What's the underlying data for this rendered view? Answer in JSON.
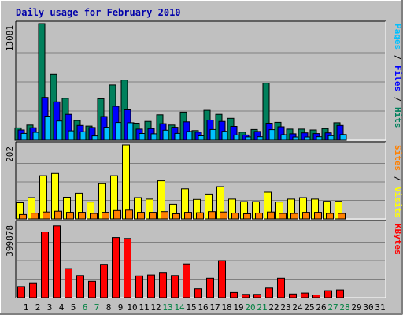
{
  "title": "Daily usage for February 2010",
  "colors": {
    "background": "#c0c0c0",
    "plot_background": "#c0c0c0",
    "title": "#0000aa",
    "hits": "#00805c",
    "files": "#0000ff",
    "pages": "#00c0ff",
    "visits": "#ffff00",
    "sites": "#ff8000",
    "kbytes": "#ff0000",
    "day_label_weekday": "#000000",
    "day_label_weekend": "#008040"
  },
  "chart_data": [
    {
      "type": "bar",
      "name": "hits-files-pages",
      "max_label": "13081",
      "ylim": [
        0,
        13081
      ],
      "right_legend": [
        "Pages",
        "Files",
        "Hits"
      ],
      "categories": [
        "1",
        "2",
        "3",
        "4",
        "5",
        "6",
        "7",
        "8",
        "9",
        "10",
        "11",
        "12",
        "13",
        "14",
        "15",
        "16",
        "17",
        "18",
        "19",
        "20",
        "21",
        "22",
        "23",
        "24",
        "25",
        "26",
        "27",
        "28",
        "29",
        "30",
        "31"
      ],
      "series": [
        {
          "name": "Hits",
          "values": [
            1380,
            1700,
            13081,
            7400,
            4700,
            2200,
            1580,
            4650,
            6200,
            6750,
            1900,
            2100,
            2850,
            1700,
            3150,
            1080,
            3350,
            2900,
            2450,
            900,
            1200,
            6400,
            2000,
            1250,
            1250,
            1150,
            1300,
            1950,
            0,
            0,
            0
          ]
        },
        {
          "name": "Files",
          "values": [
            1150,
            1400,
            4800,
            4300,
            2900,
            1650,
            1420,
            2650,
            3800,
            3400,
            1250,
            1300,
            1850,
            1450,
            2050,
            900,
            2250,
            2100,
            1550,
            580,
            980,
            1900,
            1500,
            720,
            820,
            740,
            820,
            1650,
            0,
            0,
            0
          ]
        },
        {
          "name": "Pages",
          "values": [
            760,
            880,
            2700,
            2150,
            1050,
            950,
            480,
            1450,
            1980,
            1950,
            750,
            720,
            1120,
            760,
            980,
            490,
            1200,
            1000,
            580,
            360,
            380,
            1180,
            620,
            350,
            350,
            380,
            500,
            640,
            0,
            0,
            0
          ]
        }
      ]
    },
    {
      "type": "bar",
      "name": "visits-sites",
      "max_label": "202",
      "ylim": [
        0,
        202
      ],
      "right_legend": [
        "Sites",
        "Visits"
      ],
      "categories": [
        "1",
        "2",
        "3",
        "4",
        "5",
        "6",
        "7",
        "8",
        "9",
        "10",
        "11",
        "12",
        "13",
        "14",
        "15",
        "16",
        "17",
        "18",
        "19",
        "20",
        "21",
        "22",
        "23",
        "24",
        "25",
        "26",
        "27",
        "28",
        "29",
        "30",
        "31"
      ],
      "series": [
        {
          "name": "Visits",
          "values": [
            44,
            58,
            118,
            124,
            59,
            70,
            46,
            96,
            118,
            202,
            58,
            54,
            104,
            40,
            82,
            53,
            68,
            88,
            54,
            47,
            47,
            73,
            46,
            54,
            58,
            54,
            48,
            48,
            0,
            0,
            0
          ]
        },
        {
          "name": "Sites",
          "values": [
            12,
            16,
            19,
            21,
            18,
            18,
            15,
            18,
            23,
            24,
            18,
            18,
            20,
            14,
            18,
            17,
            20,
            19,
            16,
            14,
            16,
            19,
            15,
            15,
            18,
            18,
            15,
            15,
            0,
            0,
            0
          ]
        }
      ]
    },
    {
      "type": "bar",
      "name": "kbytes",
      "max_label": "399878",
      "ylim": [
        0,
        399878
      ],
      "right_legend": [
        "KBytes"
      ],
      "categories": [
        "1",
        "2",
        "3",
        "4",
        "5",
        "6",
        "7",
        "8",
        "9",
        "10",
        "11",
        "12",
        "13",
        "14",
        "15",
        "16",
        "17",
        "18",
        "19",
        "20",
        "21",
        "22",
        "23",
        "24",
        "25",
        "26",
        "27",
        "28",
        "29",
        "30",
        "31"
      ],
      "series": [
        {
          "name": "KBytes",
          "values": [
            60000,
            80000,
            355000,
            388000,
            157000,
            120000,
            88000,
            180000,
            325000,
            320000,
            118000,
            123000,
            133000,
            120000,
            182000,
            48000,
            105000,
            200000,
            28000,
            18000,
            18000,
            52000,
            105000,
            20000,
            25000,
            15000,
            38000,
            42000,
            0,
            0,
            0
          ]
        }
      ]
    }
  ],
  "weekend_days": [
    6,
    7,
    13,
    14,
    20,
    21,
    27,
    28
  ]
}
